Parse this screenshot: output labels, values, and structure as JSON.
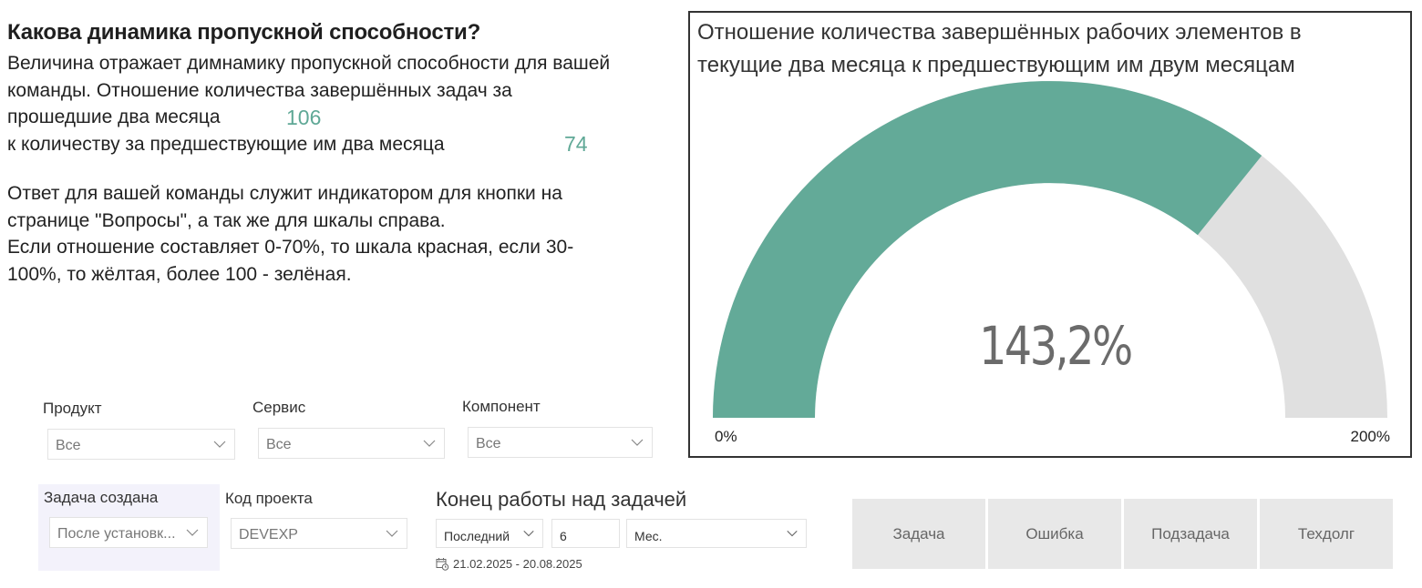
{
  "description": {
    "title": "Какова динамика пропускной способности?",
    "line1": "Величина отражает димнамику пропускной способности для вашей",
    "line2": "команды. Отношение количества завершённых задач за",
    "line3": "прошедшие два месяца",
    "current_count": "106",
    "line4": "к количеству за предшествующие им  два месяца",
    "previous_count": "74",
    "note1": "Ответ для вашей команды служит индикатором для кнопки на",
    "note2": "странице \"Вопросы\", а так же для шкалы справа.",
    "note3": "Если отношение составляет 0-70%, то шкала красная, если 30-",
    "note4": "100%, то жёлтая, более 100 - зелёная."
  },
  "gauge_card": {
    "title_line1": "Отношение количества завершённых рабочих элементов в",
    "title_line2": "текущие два месяца к предшествующим им двум месяцам",
    "value_label": "143,2%",
    "min_label": "0%",
    "max_label": "200%",
    "colors": {
      "fill": "#63aa98",
      "track": "#e0e0e0",
      "value_text": "#6b6b6b"
    }
  },
  "chart_data": {
    "type": "gauge",
    "title": "Отношение количества завершённых рабочих элементов в текущие два месяца к предшествующим им двум месяцам",
    "value": 143.2,
    "value_label": "143,2%",
    "min": 0,
    "max": 200,
    "min_label": "0%",
    "max_label": "200%",
    "unit": "%",
    "fill_color": "#63aa98",
    "track_color": "#e0e0e0"
  },
  "filters": {
    "product": {
      "label": "Продукт",
      "value": "Все"
    },
    "service": {
      "label": "Сервис",
      "value": "Все"
    },
    "component": {
      "label": "Компонент",
      "value": "Все"
    },
    "created": {
      "label": "Задача создана",
      "value": "После установк..."
    },
    "project_code": {
      "label": "Код проекта",
      "value": "DEVEXP"
    },
    "end_work": {
      "label": "Конец работы над задачей",
      "mode": "Последний",
      "count": "6",
      "unit": "Мес.",
      "date_range": "21.02.2025 - 20.08.2025"
    }
  },
  "type_buttons": [
    {
      "label": "Задача"
    },
    {
      "label": "Ошибка"
    },
    {
      "label": "Подзадача"
    },
    {
      "label": "Техдолг"
    }
  ]
}
